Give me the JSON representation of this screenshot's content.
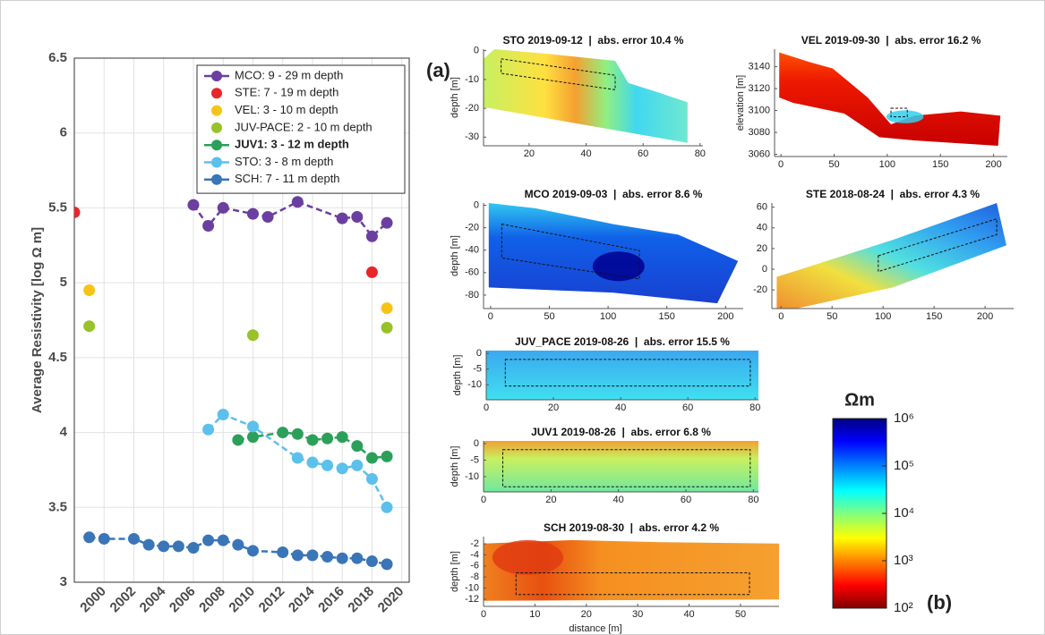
{
  "panel_labels": [
    "(a)",
    "(b)"
  ],
  "chart_data": [
    {
      "type": "line",
      "ylabel": "Average Resistivity [log Ω m]",
      "xlim": [
        1998,
        2020.5
      ],
      "xticks": [
        2000,
        2002,
        2004,
        2006,
        2008,
        2010,
        2012,
        2014,
        2016,
        2018,
        2020
      ],
      "ylim": [
        3,
        6.5
      ],
      "yticks": [
        3,
        3.5,
        4,
        4.5,
        5,
        5.5,
        6,
        6.5
      ],
      "grid": true,
      "legend": "upper right",
      "series": [
        {
          "name": "MCO: 9 - 29 m depth",
          "color": "#6b3fa0",
          "linestyle": "dashed",
          "x": [
            2006,
            2007,
            2008,
            2010,
            2011,
            2013,
            2016,
            2017,
            2018,
            2019
          ],
          "values": [
            5.52,
            5.38,
            5.5,
            5.46,
            5.44,
            5.54,
            5.43,
            5.44,
            5.31,
            5.4
          ]
        },
        {
          "name": "STE: 7 - 19 m depth",
          "color": "#e8262a",
          "linestyle": "none",
          "x": [
            1998,
            2018
          ],
          "values": [
            5.47,
            5.07
          ]
        },
        {
          "name": "VEL: 3 - 10 m depth",
          "color": "#f7c316",
          "linestyle": "none",
          "x": [
            1999,
            2019
          ],
          "values": [
            4.95,
            4.83
          ]
        },
        {
          "name": "JUV-PACE: 2 - 10 m depth",
          "color": "#98c227",
          "linestyle": "none",
          "x": [
            1999,
            2010,
            2019
          ],
          "values": [
            4.71,
            4.65,
            4.7
          ]
        },
        {
          "name": "JUV1: 3 - 12 m depth",
          "color": "#2ca05a",
          "linestyle": "dashed",
          "legend_bold": true,
          "x": [
            2009,
            2010,
            2012,
            2013,
            2014,
            2015,
            2016,
            2017,
            2018,
            2019
          ],
          "values": [
            3.95,
            3.97,
            4.0,
            3.99,
            3.95,
            3.96,
            3.97,
            3.91,
            3.83,
            3.84
          ]
        },
        {
          "name": "STO: 3 - 8 m depth",
          "color": "#5bc0eb",
          "linestyle": "dashed",
          "x": [
            2007,
            2008,
            2010,
            2013,
            2014,
            2015,
            2016,
            2017,
            2018,
            2019
          ],
          "values": [
            4.02,
            4.12,
            4.04,
            3.83,
            3.8,
            3.78,
            3.76,
            3.78,
            3.69,
            3.5
          ]
        },
        {
          "name": "SCH: 7 - 11 m depth",
          "color": "#3a75b8",
          "linestyle": "dashed",
          "x": [
            1999,
            2000,
            2002,
            2003,
            2004,
            2005,
            2006,
            2007,
            2008,
            2009,
            2010,
            2012,
            2013,
            2014,
            2015,
            2016,
            2017,
            2018,
            2019
          ],
          "values": [
            3.3,
            3.29,
            3.29,
            3.25,
            3.24,
            3.24,
            3.23,
            3.28,
            3.28,
            3.25,
            3.21,
            3.2,
            3.18,
            3.18,
            3.17,
            3.16,
            3.16,
            3.14,
            3.12
          ]
        }
      ]
    },
    {
      "type": "tomogram",
      "title": "STO 2019-09-12  |  abs. error 10.4 %",
      "ylabel": "depth [m]",
      "xlim": [
        4,
        81
      ],
      "xticks": [
        20,
        40,
        60,
        80
      ],
      "ylim": [
        -33,
        0.5
      ],
      "yticks": [
        0,
        -10,
        -20,
        -30
      ]
    },
    {
      "type": "tomogram",
      "title": "VEL 2019-09-30  |  abs. error 16.2 %",
      "ylabel": "elevation [m]",
      "xlim": [
        -6,
        213
      ],
      "xticks": [
        0,
        50,
        100,
        150,
        200
      ],
      "ylim": [
        3058,
        3156
      ],
      "yticks": [
        3060,
        3080,
        3100,
        3120,
        3140
      ]
    },
    {
      "type": "tomogram",
      "title": "MCO 2019-09-03  |  abs. error 8.6 %",
      "ylabel": "depth [m]",
      "xlim": [
        -6,
        215
      ],
      "xticks": [
        0,
        50,
        100,
        150,
        200
      ],
      "ylim": [
        -92,
        2
      ],
      "yticks": [
        0,
        -20,
        -40,
        -60,
        -80
      ]
    },
    {
      "type": "tomogram",
      "title": "STE 2018-08-24  |  abs. error 4.3 %",
      "xlim": [
        -9,
        228
      ],
      "xticks": [
        0,
        50,
        100,
        150,
        200
      ],
      "ylim": [
        -38,
        64
      ],
      "yticks": [
        60,
        40,
        20,
        0,
        -20
      ]
    },
    {
      "type": "tomogram",
      "title": "JUV_PACE 2019-08-26  |  abs. error 15.5 %",
      "ylabel": "depth [m]",
      "xlim": [
        0,
        81
      ],
      "xticks": [
        0,
        20,
        40,
        60,
        80
      ],
      "ylim": [
        -14.8,
        0.9
      ],
      "yticks": [
        0,
        -5,
        -10
      ]
    },
    {
      "type": "tomogram",
      "title": "JUV1 2019-08-26  |  abs. error 6.8 %",
      "ylabel": "depth [m]",
      "xlim": [
        0,
        81.5
      ],
      "xticks": [
        0,
        20,
        40,
        60,
        80
      ],
      "ylim": [
        -14.6,
        0.8
      ],
      "yticks": [
        0,
        -5,
        -10
      ]
    },
    {
      "type": "tomogram",
      "title": "SCH 2019-08-30  |  abs. error 4.2 %",
      "ylabel": "depth [m]",
      "xlabel": "distance [m]",
      "xlim": [
        0,
        57.5
      ],
      "xticks": [
        0,
        10,
        20,
        30,
        40,
        50
      ],
      "ylim": [
        -13.3,
        -0.7
      ],
      "yticks": [
        -2,
        -4,
        -6,
        -8,
        -10,
        -12
      ]
    },
    {
      "type": "colorbar",
      "title": "Ωm",
      "ylim": [
        2,
        6
      ],
      "yticks": [
        {
          "value": 2,
          "label": "10²"
        },
        {
          "value": 3,
          "label": "10³"
        },
        {
          "value": 4,
          "label": "10⁴"
        },
        {
          "value": 5,
          "label": "10⁵"
        },
        {
          "value": 6,
          "label": "10⁶"
        }
      ]
    }
  ]
}
